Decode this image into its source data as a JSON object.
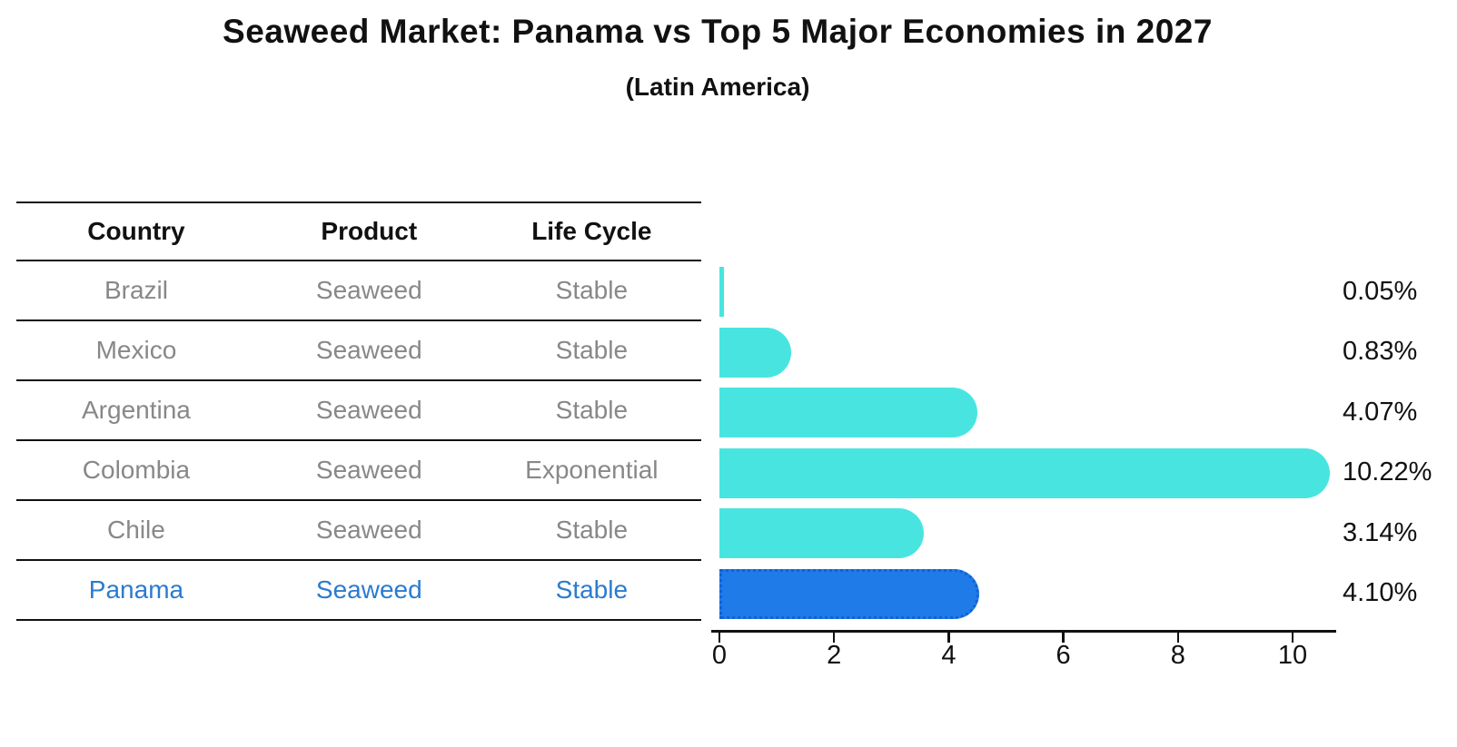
{
  "title": "Seaweed Market: Panama vs Top 5 Major Economies in 2027",
  "subtitle": "(Latin America)",
  "table": {
    "headers": [
      "Country",
      "Product",
      "Life Cycle"
    ],
    "rows": [
      {
        "country": "Brazil",
        "product": "Seaweed",
        "life_cycle": "Stable",
        "highlighted": false
      },
      {
        "country": "Mexico",
        "product": "Seaweed",
        "life_cycle": "Stable",
        "highlighted": false
      },
      {
        "country": "Argentina",
        "product": "Seaweed",
        "life_cycle": "Stable",
        "highlighted": false
      },
      {
        "country": "Colombia",
        "product": "Seaweed",
        "life_cycle": "Exponential",
        "highlighted": false
      },
      {
        "country": "Chile",
        "product": "Seaweed",
        "life_cycle": "Stable",
        "highlighted": false
      },
      {
        "country": "Panama",
        "product": "Seaweed",
        "life_cycle": "Stable",
        "highlighted": true
      }
    ]
  },
  "chart_data": {
    "type": "bar",
    "orientation": "horizontal",
    "title": "Seaweed Market: Panama vs Top 5 Major Economies in 2027",
    "subtitle": "(Latin America)",
    "categories": [
      "Brazil",
      "Mexico",
      "Argentina",
      "Colombia",
      "Chile",
      "Panama"
    ],
    "values": [
      0.05,
      0.83,
      4.07,
      10.22,
      3.14,
      4.1
    ],
    "value_labels": [
      "0.05%",
      "0.83%",
      "4.07%",
      "10.22%",
      "3.14%",
      "4.10%"
    ],
    "x_ticks": [
      0,
      2,
      4,
      6,
      8,
      10
    ],
    "xlim": [
      0,
      10.75
    ],
    "grid": false,
    "legend": false,
    "highlight_index": 5,
    "bar_color": "#48e5e0",
    "highlight_bar_color": "#1e7be8",
    "highlight_border_color": "#1161d6",
    "highlight_text_color": "#2b7bce",
    "row_text_color": "#888888",
    "axis_color": "#111111"
  }
}
